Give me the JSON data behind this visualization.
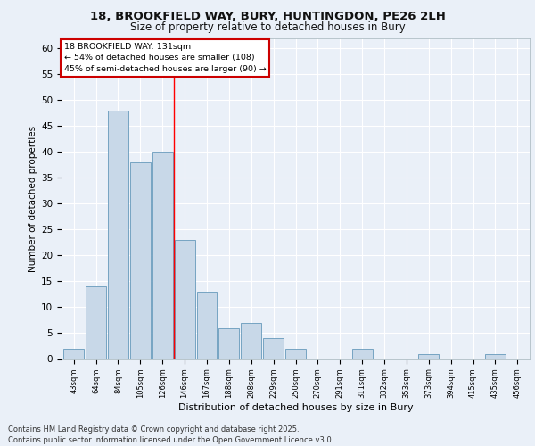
{
  "title_line1": "18, BROOKFIELD WAY, BURY, HUNTINGDON, PE26 2LH",
  "title_line2": "Size of property relative to detached houses in Bury",
  "xlabel": "Distribution of detached houses by size in Bury",
  "ylabel": "Number of detached properties",
  "bar_labels": [
    "43sqm",
    "64sqm",
    "84sqm",
    "105sqm",
    "126sqm",
    "146sqm",
    "167sqm",
    "188sqm",
    "208sqm",
    "229sqm",
    "250sqm",
    "270sqm",
    "291sqm",
    "311sqm",
    "332sqm",
    "353sqm",
    "373sqm",
    "394sqm",
    "415sqm",
    "435sqm",
    "456sqm"
  ],
  "bar_values": [
    2,
    14,
    48,
    38,
    40,
    23,
    13,
    6,
    7,
    4,
    2,
    0,
    0,
    2,
    0,
    0,
    1,
    0,
    0,
    1,
    0
  ],
  "bar_color": "#c8d8e8",
  "bar_edge_color": "#6699bb",
  "ylim": [
    0,
    62
  ],
  "yticks": [
    0,
    5,
    10,
    15,
    20,
    25,
    30,
    35,
    40,
    45,
    50,
    55,
    60
  ],
  "red_line_x": 4.5,
  "annotation_text": "18 BROOKFIELD WAY: 131sqm\n← 54% of detached houses are smaller (108)\n45% of semi-detached houses are larger (90) →",
  "annotation_box_color": "#ffffff",
  "annotation_box_edge_color": "#cc0000",
  "footnote": "Contains HM Land Registry data © Crown copyright and database right 2025.\nContains public sector information licensed under the Open Government Licence v3.0.",
  "bg_color": "#eaf0f8",
  "plot_bg_color": "#eaf0f8",
  "grid_color": "#ffffff"
}
